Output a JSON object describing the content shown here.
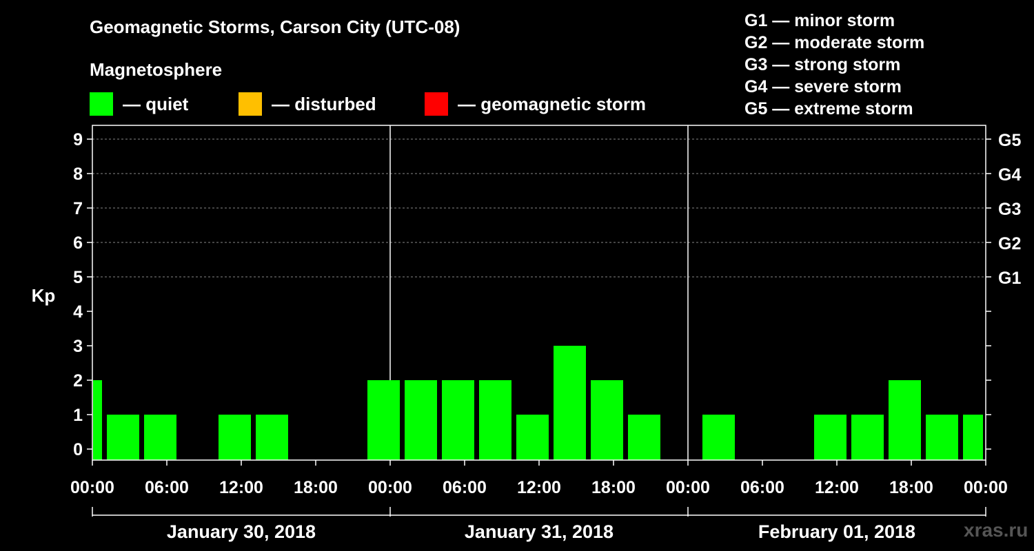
{
  "title": "Geomagnetic Storms, Carson City (UTC-08)",
  "subtitle": "Magnetosphere",
  "legend": [
    {
      "label": "— quiet",
      "color": "#00ff00"
    },
    {
      "label": "— disturbed",
      "color": "#ffbf00"
    },
    {
      "label": "— geomagnetic storm",
      "color": "#ff0000"
    }
  ],
  "storm_scale": [
    "G1 — minor storm",
    "G2 — moderate storm",
    "G3 — strong storm",
    "G4 — severe storm",
    "G5 — extreme storm"
  ],
  "watermark": "xras.ru",
  "colors": {
    "quiet": "#00ff00",
    "disturbed": "#ffbf00",
    "storm": "#ff0000",
    "background": "#000000",
    "axis": "#ffffff"
  },
  "chart_data": {
    "type": "bar",
    "ylabel": "Kp",
    "ylim": [
      0,
      9
    ],
    "yticks": [
      "0",
      "1",
      "2",
      "3",
      "4",
      "5",
      "6",
      "7",
      "8",
      "9"
    ],
    "right_ticks": [
      {
        "kp": 5,
        "label": "G1"
      },
      {
        "kp": 6,
        "label": "G2"
      },
      {
        "kp": 7,
        "label": "G3"
      },
      {
        "kp": 8,
        "label": "G4"
      },
      {
        "kp": 9,
        "label": "G5"
      }
    ],
    "grid": "dashed horizontal at Kp 5-9",
    "xlim_hours": [
      0,
      72
    ],
    "xticks": [
      {
        "hour": 0,
        "label": "00:00"
      },
      {
        "hour": 6,
        "label": "06:00"
      },
      {
        "hour": 12,
        "label": "12:00"
      },
      {
        "hour": 18,
        "label": "18:00"
      },
      {
        "hour": 24,
        "label": "00:00"
      },
      {
        "hour": 30,
        "label": "06:00"
      },
      {
        "hour": 36,
        "label": "12:00"
      },
      {
        "hour": 42,
        "label": "18:00"
      },
      {
        "hour": 48,
        "label": "00:00"
      },
      {
        "hour": 54,
        "label": "06:00"
      },
      {
        "hour": 60,
        "label": "12:00"
      },
      {
        "hour": 66,
        "label": "18:00"
      },
      {
        "hour": 72,
        "label": "00:00"
      }
    ],
    "days": [
      "January 30, 2018",
      "January 31, 2018",
      "February 01, 2018"
    ],
    "bars": [
      {
        "start": 0,
        "end": 1,
        "kp": 2,
        "status": "quiet"
      },
      {
        "start": 1,
        "end": 4,
        "kp": 1,
        "status": "quiet"
      },
      {
        "start": 4,
        "end": 7,
        "kp": 1,
        "status": "quiet"
      },
      {
        "start": 7,
        "end": 10,
        "kp": 0,
        "status": "quiet"
      },
      {
        "start": 10,
        "end": 13,
        "kp": 1,
        "status": "quiet"
      },
      {
        "start": 13,
        "end": 16,
        "kp": 1,
        "status": "quiet"
      },
      {
        "start": 16,
        "end": 19,
        "kp": 0,
        "status": "quiet"
      },
      {
        "start": 19,
        "end": 22,
        "kp": 0,
        "status": "quiet"
      },
      {
        "start": 22,
        "end": 25,
        "kp": 2,
        "status": "quiet"
      },
      {
        "start": 25,
        "end": 28,
        "kp": 2,
        "status": "quiet"
      },
      {
        "start": 28,
        "end": 31,
        "kp": 2,
        "status": "quiet"
      },
      {
        "start": 31,
        "end": 34,
        "kp": 2,
        "status": "quiet"
      },
      {
        "start": 34,
        "end": 37,
        "kp": 1,
        "status": "quiet"
      },
      {
        "start": 37,
        "end": 40,
        "kp": 3,
        "status": "quiet"
      },
      {
        "start": 40,
        "end": 43,
        "kp": 2,
        "status": "quiet"
      },
      {
        "start": 43,
        "end": 46,
        "kp": 1,
        "status": "quiet"
      },
      {
        "start": 46,
        "end": 49,
        "kp": 0,
        "status": "quiet"
      },
      {
        "start": 49,
        "end": 52,
        "kp": 1,
        "status": "quiet"
      },
      {
        "start": 52,
        "end": 55,
        "kp": 0,
        "status": "quiet"
      },
      {
        "start": 55,
        "end": 58,
        "kp": 0,
        "status": "quiet"
      },
      {
        "start": 58,
        "end": 61,
        "kp": 1,
        "status": "quiet"
      },
      {
        "start": 61,
        "end": 64,
        "kp": 1,
        "status": "quiet"
      },
      {
        "start": 64,
        "end": 67,
        "kp": 2,
        "status": "quiet"
      },
      {
        "start": 67,
        "end": 70,
        "kp": 1,
        "status": "quiet"
      },
      {
        "start": 70,
        "end": 72,
        "kp": 1,
        "status": "quiet"
      }
    ]
  }
}
